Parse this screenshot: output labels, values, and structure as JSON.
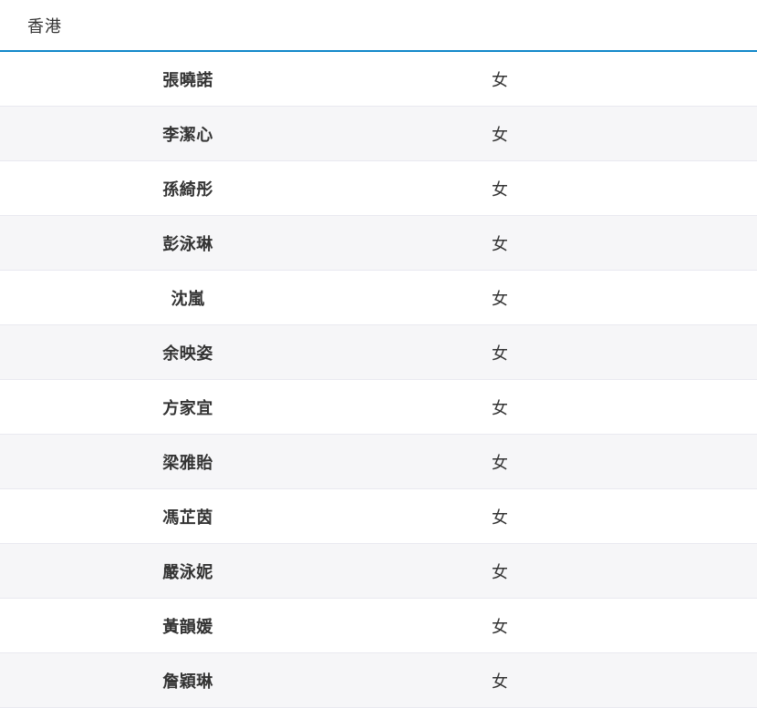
{
  "header": {
    "title": "香港"
  },
  "table": {
    "rows": [
      {
        "name": "張曉諾",
        "gender": "女"
      },
      {
        "name": "李潔心",
        "gender": "女"
      },
      {
        "name": "孫綺彤",
        "gender": "女"
      },
      {
        "name": "彭泳琳",
        "gender": "女"
      },
      {
        "name": "沈嵐",
        "gender": "女"
      },
      {
        "name": "余映姿",
        "gender": "女"
      },
      {
        "name": "方家宜",
        "gender": "女"
      },
      {
        "name": "梁雅貽",
        "gender": "女"
      },
      {
        "name": "馮芷茵",
        "gender": "女"
      },
      {
        "name": "嚴泳妮",
        "gender": "女"
      },
      {
        "name": "黃韻媛",
        "gender": "女"
      },
      {
        "name": "詹穎琳",
        "gender": "女"
      }
    ]
  },
  "colors": {
    "accent_line": "#0f87c9",
    "stripe_background": "#f6f6f8",
    "row_border": "#e9e9f0",
    "text": "#333333"
  }
}
